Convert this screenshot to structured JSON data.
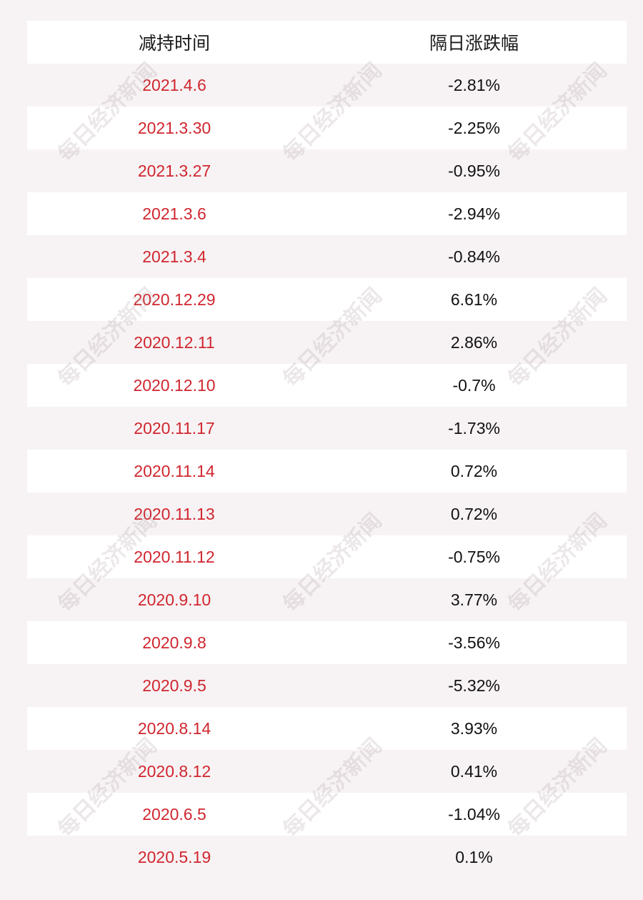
{
  "headers": {
    "date": "减持时间",
    "change": "隔日涨跌幅"
  },
  "rows": [
    {
      "date": "2021.4.6",
      "change": "-2.81%"
    },
    {
      "date": "2021.3.30",
      "change": "-2.25%"
    },
    {
      "date": "2021.3.27",
      "change": "-0.95%"
    },
    {
      "date": "2021.3.6",
      "change": "-2.94%"
    },
    {
      "date": "2021.3.4",
      "change": "-0.84%"
    },
    {
      "date": "2020.12.29",
      "change": "6.61%"
    },
    {
      "date": "2020.12.11",
      "change": "2.86%"
    },
    {
      "date": "2020.12.10",
      "change": "-0.7%"
    },
    {
      "date": "2020.11.17",
      "change": "-1.73%"
    },
    {
      "date": "2020.11.14",
      "change": "0.72%"
    },
    {
      "date": "2020.11.13",
      "change": "0.72%"
    },
    {
      "date": "2020.11.12",
      "change": "-0.75%"
    },
    {
      "date": "2020.9.10",
      "change": "3.77%"
    },
    {
      "date": "2020.9.8",
      "change": "-3.56%"
    },
    {
      "date": "2020.9.5",
      "change": "-5.32%"
    },
    {
      "date": "2020.8.14",
      "change": "3.93%"
    },
    {
      "date": "2020.8.12",
      "change": "0.41%"
    },
    {
      "date": "2020.6.5",
      "change": "-1.04%"
    },
    {
      "date": "2020.5.19",
      "change": "0.1%"
    }
  ],
  "watermark": "每日经济新闻",
  "colors": {
    "date_text": "#d0262f",
    "value_text": "#111111",
    "background": "#f7f3f4",
    "row_light": "#ffffff"
  }
}
